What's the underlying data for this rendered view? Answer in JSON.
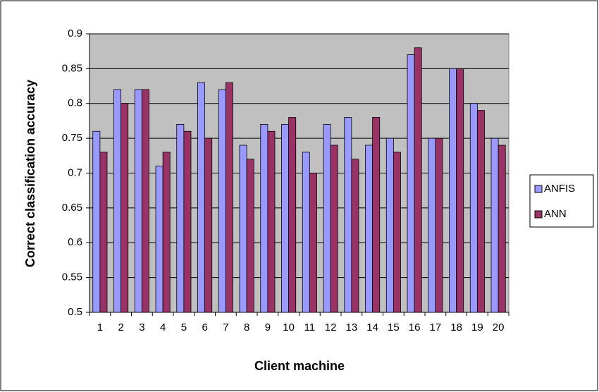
{
  "chart_data": {
    "type": "bar",
    "x_label": "Client machine",
    "y_label": "Correct classification accuracy",
    "categories": [
      "1",
      "2",
      "3",
      "4",
      "5",
      "6",
      "7",
      "8",
      "9",
      "10",
      "11",
      "12",
      "13",
      "14",
      "15",
      "16",
      "17",
      "18",
      "19",
      "20"
    ],
    "series": [
      {
        "name": "ANFIS",
        "color": "#9999ff",
        "values": [
          0.76,
          0.82,
          0.82,
          0.71,
          0.77,
          0.83,
          0.82,
          0.74,
          0.77,
          0.77,
          0.73,
          0.77,
          0.78,
          0.74,
          0.75,
          0.87,
          0.75,
          0.85,
          0.8,
          0.75
        ]
      },
      {
        "name": "ANN",
        "color": "#993366",
        "values": [
          0.73,
          0.8,
          0.82,
          0.73,
          0.76,
          0.75,
          0.83,
          0.72,
          0.76,
          0.78,
          0.7,
          0.74,
          0.72,
          0.78,
          0.73,
          0.88,
          0.75,
          0.85,
          0.79,
          0.74
        ]
      }
    ],
    "ylim": [
      0.5,
      0.9
    ],
    "yticks": [
      0.5,
      0.55,
      0.6,
      0.65,
      0.7,
      0.75,
      0.8,
      0.85,
      0.9
    ],
    "grid": true,
    "legend": "right",
    "plot_background": "#c0c0c0"
  }
}
